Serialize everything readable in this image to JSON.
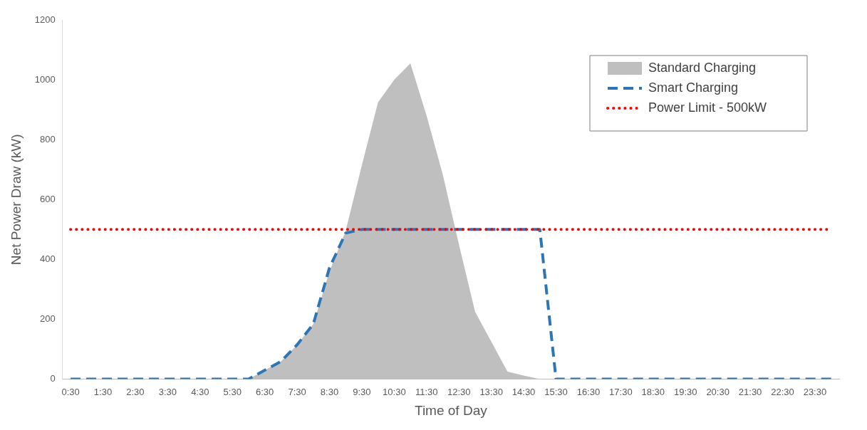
{
  "chart_data": {
    "type": "area",
    "xlabel": "Time of Day",
    "ylabel": "Net Power Draw (kW)",
    "categories": [
      "0:30",
      null,
      "1:30",
      null,
      "2:30",
      null,
      "3:30",
      null,
      "4:30",
      null,
      "5:30",
      null,
      "6:30",
      null,
      "7:30",
      null,
      "8:30",
      null,
      "9:30",
      null,
      "10:30",
      null,
      "11:30",
      null,
      "12:30",
      null,
      "13:30",
      null,
      "14:30",
      null,
      "15:30",
      null,
      "16:30",
      null,
      "17:30",
      null,
      "18:30",
      null,
      "19:30",
      null,
      "20:30",
      null,
      "21:30",
      null,
      "22:30",
      null,
      "23:30",
      null
    ],
    "series": [
      {
        "name": "Standard Charging",
        "color": "#bfbfbf",
        "values": [
          0,
          0,
          0,
          0,
          0,
          0,
          0,
          0,
          0,
          0,
          0,
          0,
          30,
          59,
          115,
          184,
          360,
          495,
          715,
          925,
          1000,
          1055,
          880,
          684,
          450,
          225,
          125,
          25,
          12,
          0,
          0,
          0,
          0,
          0,
          0,
          0,
          0,
          0,
          0,
          0,
          0,
          0,
          0,
          0,
          0,
          0,
          0,
          0
        ]
      },
      {
        "name": "Smart Charging",
        "type": "line",
        "line_style": "dashed",
        "color": "#2e75b6",
        "values": [
          0,
          0,
          0,
          0,
          0,
          0,
          0,
          0,
          0,
          0,
          0,
          0,
          30,
          59,
          115,
          184,
          372,
          488,
          500,
          500,
          500,
          500,
          500,
          500,
          500,
          500,
          500,
          500,
          500,
          500,
          0,
          0,
          0,
          0,
          0,
          0,
          0,
          0,
          0,
          0,
          0,
          0,
          0,
          0,
          0,
          0,
          0,
          0
        ]
      },
      {
        "name": "Power Limit - 500kW",
        "type": "line",
        "line_style": "dotted",
        "color": "#ff0000",
        "values": [
          500,
          500,
          500,
          500,
          500,
          500,
          500,
          500,
          500,
          500,
          500,
          500,
          500,
          500,
          500,
          500,
          500,
          500,
          500,
          500,
          500,
          500,
          500,
          500,
          500,
          500,
          500,
          500,
          500,
          500,
          500,
          500,
          500,
          500,
          500,
          500,
          500,
          500,
          500,
          500,
          500,
          500,
          500,
          500,
          500,
          500,
          500,
          500
        ]
      }
    ],
    "ylim": [
      0,
      1200
    ],
    "yticks": [
      0,
      200,
      400,
      600,
      800,
      1000,
      1200
    ],
    "grid": false,
    "legend": "top right"
  }
}
